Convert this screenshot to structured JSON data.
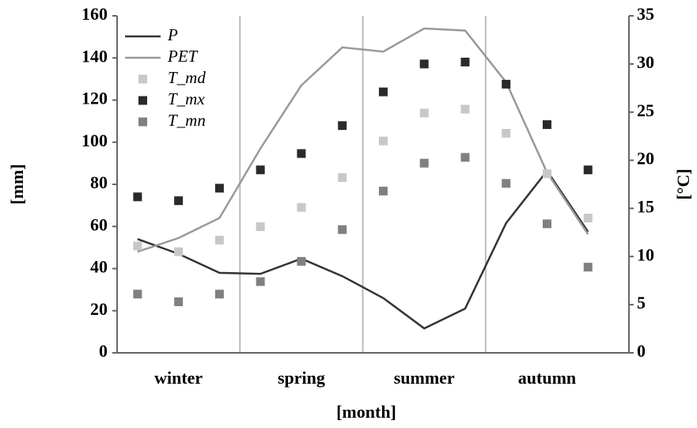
{
  "chart_data": {
    "type": "line",
    "categories": [
      null,
      "winter",
      null,
      null,
      "spring",
      null,
      null,
      "summer",
      null,
      null,
      "autumn",
      null
    ],
    "x_label": "[month]",
    "y_label": "[mm]",
    "y2_label": "[°C]",
    "ylim": [
      0,
      160
    ],
    "yticks": [
      0,
      20,
      40,
      60,
      80,
      100,
      120,
      140,
      160
    ],
    "y2lim": [
      0,
      35
    ],
    "y2ticks": [
      0,
      5,
      10,
      15,
      20,
      25,
      30,
      35
    ],
    "legend": "upper left",
    "series": [
      {
        "name": "P",
        "type": "line",
        "color": "#333333",
        "values": [
          54,
          47,
          38,
          37.5,
          44.7,
          36.4,
          26,
          11.6,
          21,
          61.6,
          86.4,
          57.5
        ]
      },
      {
        "name": "PET",
        "type": "line",
        "color": "#999999",
        "values": [
          48,
          54.5,
          64,
          97,
          127,
          145,
          143,
          154,
          153,
          128.5,
          85.6,
          56.3
        ]
      },
      {
        "name": "T_md",
        "type": "scatter",
        "axis": "y2",
        "color": "#c8c8c8",
        "values": [
          11.1,
          10.5,
          11.7,
          13.1,
          15.1,
          18.2,
          22,
          24.9,
          25.3,
          22.8,
          18.6,
          14
        ]
      },
      {
        "name": "T_mx",
        "type": "scatter",
        "axis": "y2",
        "color": "#2a2a2a",
        "values": [
          16.2,
          15.8,
          17.1,
          19,
          20.7,
          23.6,
          27.1,
          30,
          30.2,
          27.9,
          23.7,
          19
        ]
      },
      {
        "name": "T_mn",
        "type": "scatter",
        "axis": "y2",
        "color": "#808080",
        "values": [
          6.1,
          5.3,
          6.1,
          7.4,
          9.5,
          12.8,
          16.8,
          19.7,
          20.3,
          17.6,
          13.4,
          8.9
        ]
      }
    ]
  }
}
